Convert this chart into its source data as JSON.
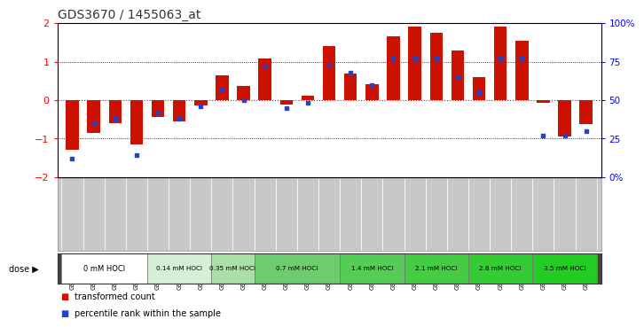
{
  "title": "GDS3670 / 1455063_at",
  "samples": [
    "GSM387601",
    "GSM387602",
    "GSM387605",
    "GSM387606",
    "GSM387645",
    "GSM387646",
    "GSM387647",
    "GSM387648",
    "GSM387649",
    "GSM387676",
    "GSM387677",
    "GSM387678",
    "GSM387679",
    "GSM387698",
    "GSM387699",
    "GSM387700",
    "GSM387701",
    "GSM387702",
    "GSM387703",
    "GSM387713",
    "GSM387714",
    "GSM387716",
    "GSM387750",
    "GSM387751",
    "GSM387752"
  ],
  "red_values": [
    -1.3,
    -0.85,
    -0.6,
    -1.15,
    -0.45,
    -0.55,
    -0.15,
    0.65,
    0.37,
    1.08,
    -0.12,
    0.12,
    1.4,
    0.68,
    0.42,
    1.65,
    1.92,
    1.75,
    1.3,
    0.6,
    1.92,
    1.55,
    -0.08,
    -0.95,
    -0.62
  ],
  "blue_values": [
    12,
    35,
    38,
    14,
    42,
    38,
    46,
    57,
    50,
    72,
    45,
    48,
    73,
    68,
    60,
    77,
    77,
    77,
    65,
    55,
    77,
    77,
    27,
    27,
    30
  ],
  "dose_groups": [
    {
      "label": "0 mM HOCl",
      "start": 0,
      "end": 4,
      "color": "#ffffff"
    },
    {
      "label": "0.14 mM HOCl",
      "start": 4,
      "end": 7,
      "color": "#d4f0d4"
    },
    {
      "label": "0.35 mM HOCl",
      "start": 7,
      "end": 9,
      "color": "#a8e0a8"
    },
    {
      "label": "0.7 mM HOCl",
      "start": 9,
      "end": 13,
      "color": "#6dcc6d"
    },
    {
      "label": "1.4 mM HOCl",
      "start": 13,
      "end": 16,
      "color": "#55cc55"
    },
    {
      "label": "2.1 mM HOCl",
      "start": 16,
      "end": 19,
      "color": "#44cc44"
    },
    {
      "label": "2.8 mM HOCl",
      "start": 19,
      "end": 22,
      "color": "#33cc33"
    },
    {
      "label": "3.5 mM HOCl",
      "start": 22,
      "end": 25,
      "color": "#22cc22"
    }
  ],
  "ylim": [
    -2,
    2
  ],
  "right_ylim": [
    0,
    100
  ],
  "bar_color": "#cc1100",
  "blue_color": "#2244cc",
  "bg_color": "#ffffff",
  "xlabel_bg": "#c8c8c8",
  "dose_bar_bg": "#444444",
  "title_fontsize": 10,
  "title_color": "#333333"
}
